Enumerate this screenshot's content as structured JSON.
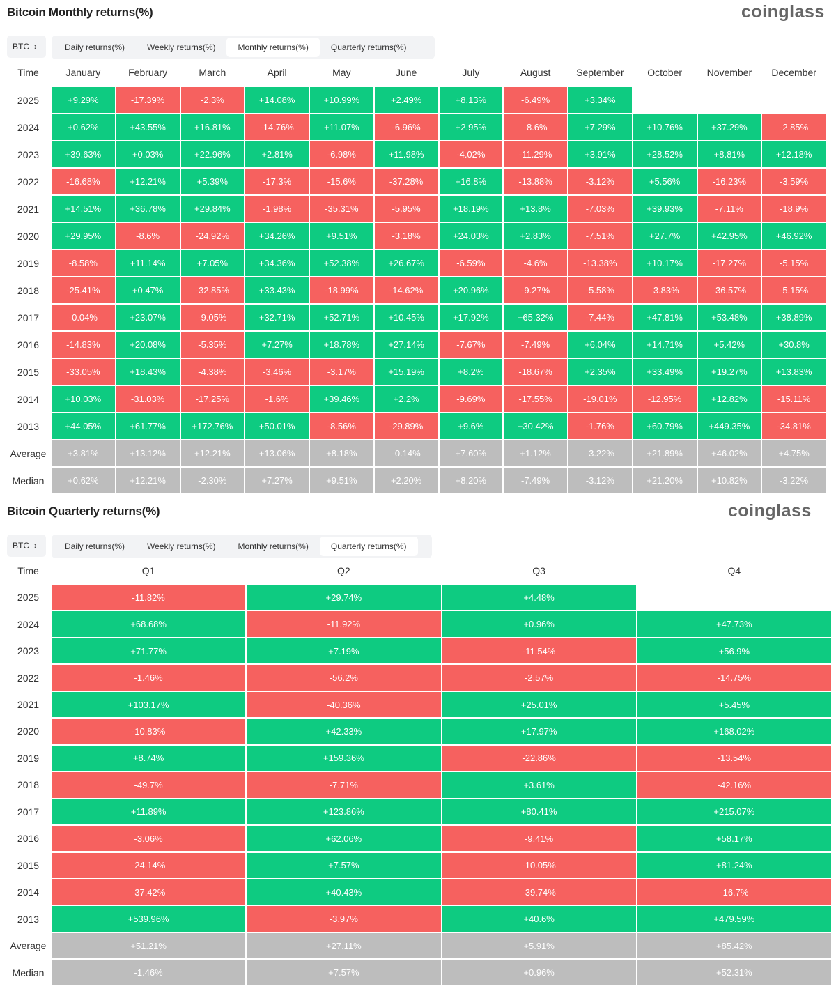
{
  "sections": [
    {
      "title": "Bitcoin Monthly returns(%)",
      "brand": "coinglass",
      "selector": "BTC",
      "tabs": [
        "Daily returns(%)",
        "Weekly returns(%)",
        "Monthly returns(%)",
        "Quarterly returns(%)"
      ],
      "active_tab": 2,
      "header": [
        "Time",
        "January",
        "February",
        "March",
        "April",
        "May",
        "June",
        "July",
        "August",
        "September",
        "October",
        "November",
        "December"
      ],
      "rows": [
        {
          "label": "2025",
          "cells": [
            "+9.29%",
            "-17.39%",
            "-2.3%",
            "+14.08%",
            "+10.99%",
            "+2.49%",
            "+8.13%",
            "-6.49%",
            "+3.34%"
          ]
        },
        {
          "label": "2024",
          "cells": [
            "+0.62%",
            "+43.55%",
            "+16.81%",
            "-14.76%",
            "+11.07%",
            "-6.96%",
            "+2.95%",
            "-8.6%",
            "+7.29%",
            "+10.76%",
            "+37.29%",
            "-2.85%"
          ]
        },
        {
          "label": "2023",
          "cells": [
            "+39.63%",
            "+0.03%",
            "+22.96%",
            "+2.81%",
            "-6.98%",
            "+11.98%",
            "-4.02%",
            "-11.29%",
            "+3.91%",
            "+28.52%",
            "+8.81%",
            "+12.18%"
          ]
        },
        {
          "label": "2022",
          "cells": [
            "-16.68%",
            "+12.21%",
            "+5.39%",
            "-17.3%",
            "-15.6%",
            "-37.28%",
            "+16.8%",
            "-13.88%",
            "-3.12%",
            "+5.56%",
            "-16.23%",
            "-3.59%"
          ]
        },
        {
          "label": "2021",
          "cells": [
            "+14.51%",
            "+36.78%",
            "+29.84%",
            "-1.98%",
            "-35.31%",
            "-5.95%",
            "+18.19%",
            "+13.8%",
            "-7.03%",
            "+39.93%",
            "-7.11%",
            "-18.9%"
          ]
        },
        {
          "label": "2020",
          "cells": [
            "+29.95%",
            "-8.6%",
            "-24.92%",
            "+34.26%",
            "+9.51%",
            "-3.18%",
            "+24.03%",
            "+2.83%",
            "-7.51%",
            "+27.7%",
            "+42.95%",
            "+46.92%"
          ]
        },
        {
          "label": "2019",
          "cells": [
            "-8.58%",
            "+11.14%",
            "+7.05%",
            "+34.36%",
            "+52.38%",
            "+26.67%",
            "-6.59%",
            "-4.6%",
            "-13.38%",
            "+10.17%",
            "-17.27%",
            "-5.15%"
          ]
        },
        {
          "label": "2018",
          "cells": [
            "-25.41%",
            "+0.47%",
            "-32.85%",
            "+33.43%",
            "-18.99%",
            "-14.62%",
            "+20.96%",
            "-9.27%",
            "-5.58%",
            "-3.83%",
            "-36.57%",
            "-5.15%"
          ]
        },
        {
          "label": "2017",
          "cells": [
            "-0.04%",
            "+23.07%",
            "-9.05%",
            "+32.71%",
            "+52.71%",
            "+10.45%",
            "+17.92%",
            "+65.32%",
            "-7.44%",
            "+47.81%",
            "+53.48%",
            "+38.89%"
          ]
        },
        {
          "label": "2016",
          "cells": [
            "-14.83%",
            "+20.08%",
            "-5.35%",
            "+7.27%",
            "+18.78%",
            "+27.14%",
            "-7.67%",
            "-7.49%",
            "+6.04%",
            "+14.71%",
            "+5.42%",
            "+30.8%"
          ]
        },
        {
          "label": "2015",
          "cells": [
            "-33.05%",
            "+18.43%",
            "-4.38%",
            "-3.46%",
            "-3.17%",
            "+15.19%",
            "+8.2%",
            "-18.67%",
            "+2.35%",
            "+33.49%",
            "+19.27%",
            "+13.83%"
          ]
        },
        {
          "label": "2014",
          "cells": [
            "+10.03%",
            "-31.03%",
            "-17.25%",
            "-1.6%",
            "+39.46%",
            "+2.2%",
            "-9.69%",
            "-17.55%",
            "-19.01%",
            "-12.95%",
            "+12.82%",
            "-15.11%"
          ]
        },
        {
          "label": "2013",
          "cells": [
            "+44.05%",
            "+61.77%",
            "+172.76%",
            "+50.01%",
            "-8.56%",
            "-29.89%",
            "+9.6%",
            "+30.42%",
            "-1.76%",
            "+60.79%",
            "+449.35%",
            "-34.81%"
          ]
        }
      ],
      "summary_rows": [
        {
          "label": "Average",
          "cells": [
            "+3.81%",
            "+13.12%",
            "+12.21%",
            "+13.06%",
            "+8.18%",
            "-0.14%",
            "+7.60%",
            "+1.12%",
            "-3.22%",
            "+21.89%",
            "+46.02%",
            "+4.75%"
          ]
        },
        {
          "label": "Median",
          "cells": [
            "+0.62%",
            "+12.21%",
            "-2.30%",
            "+7.27%",
            "+9.51%",
            "+2.20%",
            "+8.20%",
            "-7.49%",
            "-3.12%",
            "+21.20%",
            "+10.82%",
            "-3.22%"
          ]
        }
      ]
    },
    {
      "title": "Bitcoin Quarterly returns(%)",
      "brand": "coinglass",
      "selector": "BTC",
      "tabs": [
        "Daily returns(%)",
        "Weekly returns(%)",
        "Monthly returns(%)",
        "Quarterly returns(%)"
      ],
      "active_tab": 3,
      "header": [
        "Time",
        "Q1",
        "Q2",
        "Q3",
        "Q4"
      ],
      "rows": [
        {
          "label": "2025",
          "cells": [
            "-11.82%",
            "+29.74%",
            "+4.48%"
          ]
        },
        {
          "label": "2024",
          "cells": [
            "+68.68%",
            "-11.92%",
            "+0.96%",
            "+47.73%"
          ]
        },
        {
          "label": "2023",
          "cells": [
            "+71.77%",
            "+7.19%",
            "-11.54%",
            "+56.9%"
          ]
        },
        {
          "label": "2022",
          "cells": [
            "-1.46%",
            "-56.2%",
            "-2.57%",
            "-14.75%"
          ]
        },
        {
          "label": "2021",
          "cells": [
            "+103.17%",
            "-40.36%",
            "+25.01%",
            "+5.45%"
          ]
        },
        {
          "label": "2020",
          "cells": [
            "-10.83%",
            "+42.33%",
            "+17.97%",
            "+168.02%"
          ]
        },
        {
          "label": "2019",
          "cells": [
            "+8.74%",
            "+159.36%",
            "-22.86%",
            "-13.54%"
          ]
        },
        {
          "label": "2018",
          "cells": [
            "-49.7%",
            "-7.71%",
            "+3.61%",
            "-42.16%"
          ]
        },
        {
          "label": "2017",
          "cells": [
            "+11.89%",
            "+123.86%",
            "+80.41%",
            "+215.07%"
          ]
        },
        {
          "label": "2016",
          "cells": [
            "-3.06%",
            "+62.06%",
            "-9.41%",
            "+58.17%"
          ]
        },
        {
          "label": "2015",
          "cells": [
            "-24.14%",
            "+7.57%",
            "-10.05%",
            "+81.24%"
          ]
        },
        {
          "label": "2014",
          "cells": [
            "-37.42%",
            "+40.43%",
            "-39.74%",
            "-16.7%"
          ]
        },
        {
          "label": "2013",
          "cells": [
            "+539.96%",
            "-3.97%",
            "+40.6%",
            "+479.59%"
          ]
        }
      ],
      "summary_rows": [
        {
          "label": "Average",
          "cells": [
            "+51.21%",
            "+27.11%",
            "+5.91%",
            "+85.42%"
          ]
        },
        {
          "label": "Median",
          "cells": [
            "-1.46%",
            "+7.57%",
            "+0.96%",
            "+52.31%"
          ]
        }
      ]
    }
  ]
}
